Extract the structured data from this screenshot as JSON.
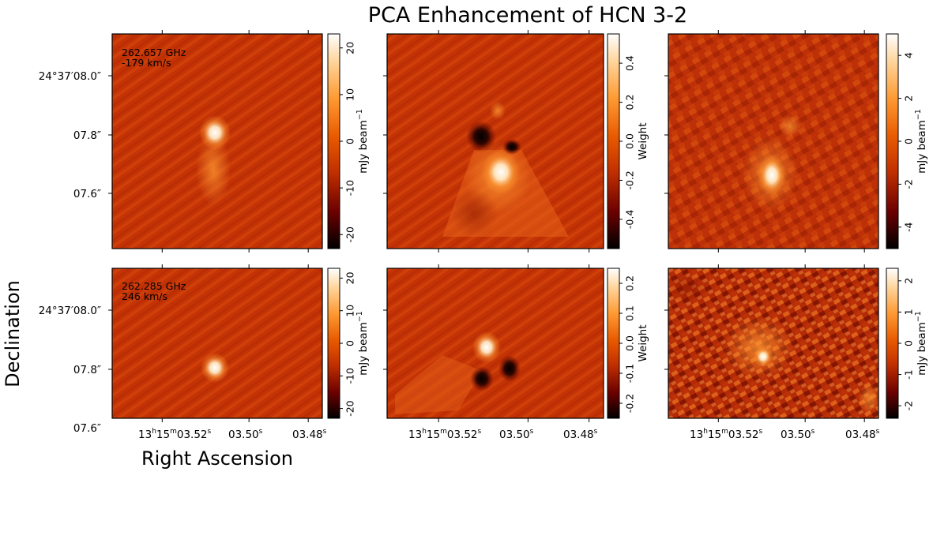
{
  "chart_data": {
    "type": "heatmap",
    "title": "PCA Enhancement of HCN 3-2",
    "xlabel": "Right Ascension",
    "ylabel": "Declination",
    "colormap": "gist_heat",
    "colormap_stops": [
      "#000000",
      "#6b0000",
      "#c23000",
      "#e85a00",
      "#ff9a33",
      "#ffd49a",
      "#ffffff"
    ],
    "background_color": "#c43306",
    "y_ticks": [
      "24°37′08.0″",
      "07.8″",
      "07.6″"
    ],
    "x_ticks": [
      {
        "main": "13",
        "sup1": "h",
        "mid": "15",
        "sup2": "m",
        "rest": "03.52",
        "sup3": "s"
      },
      {
        "main": "",
        "sup1": "",
        "mid": "",
        "sup2": "",
        "rest": "03.50",
        "sup3": "s"
      },
      {
        "main": "",
        "sup1": "",
        "mid": "",
        "sup2": "",
        "rest": "03.48",
        "sup3": "s"
      }
    ],
    "rows": [
      {
        "frequency": "262.657 GHz",
        "velocity": "-179 km/s",
        "panels": [
          {
            "kind": "data",
            "colorbar_label": "mJy beam",
            "colorbar_exp": "−1",
            "vmin": -23,
            "vmax": 23,
            "ticks": [
              -20,
              -10,
              0,
              10,
              20
            ]
          },
          {
            "kind": "weight",
            "colorbar_label": "Weight",
            "colorbar_exp": "",
            "vmin": -0.55,
            "vmax": 0.55,
            "ticks": [
              -0.4,
              -0.2,
              0.0,
              0.2,
              0.4
            ]
          },
          {
            "kind": "enhanced",
            "colorbar_label": "mJy beam",
            "colorbar_exp": "−1",
            "vmin": -5,
            "vmax": 5,
            "ticks": [
              -4,
              -2,
              0,
              2,
              4
            ]
          }
        ]
      },
      {
        "frequency": "262.285 GHz",
        "velocity": "246 km/s",
        "panels": [
          {
            "kind": "data",
            "colorbar_label": "mJy beam",
            "colorbar_exp": "−1",
            "vmin": -23,
            "vmax": 23,
            "ticks": [
              -20,
              -10,
              0,
              10,
              20
            ]
          },
          {
            "kind": "weight",
            "colorbar_label": "Weight",
            "colorbar_exp": "",
            "vmin": -0.25,
            "vmax": 0.25,
            "ticks": [
              -0.2,
              -0.1,
              0.0,
              0.1,
              0.2
            ]
          },
          {
            "kind": "enhanced",
            "colorbar_label": "mJy beam",
            "colorbar_exp": "−1",
            "vmin": -2.4,
            "vmax": 2.4,
            "ticks": [
              -2,
              -1,
              0,
              1,
              2
            ]
          }
        ]
      }
    ]
  }
}
